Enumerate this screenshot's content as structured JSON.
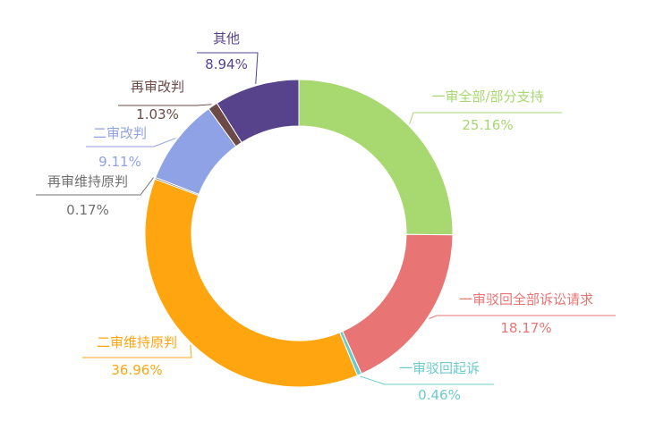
{
  "chart_data": {
    "type": "pie",
    "variant": "donut",
    "slices": [
      {
        "name": "一审全部/部分支持",
        "value": 25.16,
        "value_label": "25.16%",
        "color": "#a8d870"
      },
      {
        "name": "一审驳回全部诉讼请求",
        "value": 18.17,
        "value_label": "18.17%",
        "color": "#e87474"
      },
      {
        "name": "一审驳回起诉",
        "value": 0.46,
        "value_label": "0.46%",
        "color": "#6ccccc"
      },
      {
        "name": "二审维持原判",
        "value": 36.96,
        "value_label": "36.96%",
        "color": "#ffa50f"
      },
      {
        "name": "再审维持原判",
        "value": 0.17,
        "value_label": "0.17%",
        "color": "#707070"
      },
      {
        "name": "二审改判",
        "value": 9.11,
        "value_label": "9.11%",
        "color": "#90a2e6"
      },
      {
        "name": "再审改判",
        "value": 1.03,
        "value_label": "1.03%",
        "color": "#6b4a48"
      },
      {
        "name": "其他",
        "value": 8.94,
        "value_label": "8.94%",
        "color": "#56438c"
      }
    ],
    "legend": "none",
    "labels": "outside-with-leader-lines"
  }
}
